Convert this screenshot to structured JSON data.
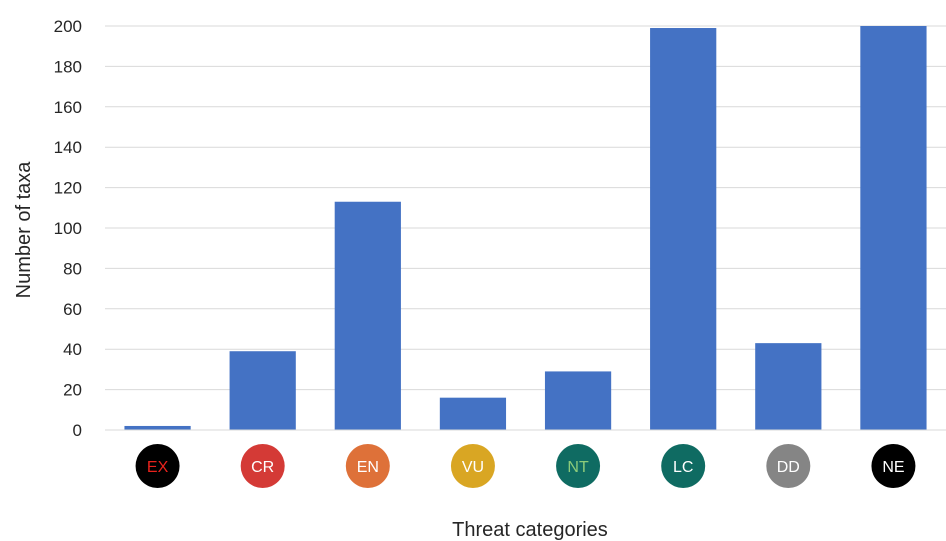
{
  "chart_data": {
    "type": "bar",
    "categories": [
      "EX",
      "CR",
      "EN",
      "VU",
      "NT",
      "LC",
      "DD",
      "NE"
    ],
    "values": [
      2,
      39,
      113,
      16,
      29,
      199,
      43,
      200
    ],
    "xlabel": "Threat categories",
    "ylabel": "Number of taxa",
    "ylim": [
      0,
      200
    ],
    "yticks": [
      0,
      20,
      40,
      60,
      80,
      100,
      120,
      140,
      160,
      180,
      200
    ],
    "grid": true,
    "bar_color": "#4472C4",
    "category_badges": [
      {
        "label": "EX",
        "fill": "#000000",
        "text_color": "#E8221C"
      },
      {
        "label": "CR",
        "fill": "#D43A36",
        "text_color": "#FFFFFF"
      },
      {
        "label": "EN",
        "fill": "#DE7139",
        "text_color": "#FFFFFF"
      },
      {
        "label": "VU",
        "fill": "#D9A623",
        "text_color": "#FFFFFF"
      },
      {
        "label": "NT",
        "fill": "#0F6B62",
        "text_color": "#8CCB7A"
      },
      {
        "label": "LC",
        "fill": "#0F6B62",
        "text_color": "#FFFFFF"
      },
      {
        "label": "DD",
        "fill": "#858585",
        "text_color": "#FFFFFF"
      },
      {
        "label": "NE",
        "fill": "#000000",
        "text_color": "#FFFFFF"
      }
    ]
  }
}
